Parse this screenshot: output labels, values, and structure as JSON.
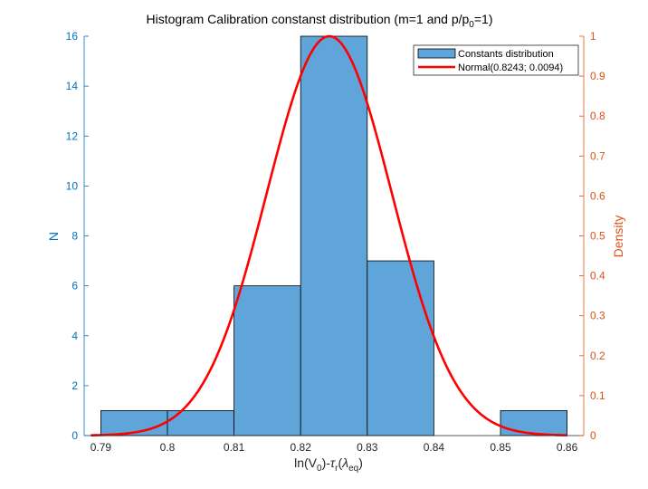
{
  "chart_data": {
    "type": "bar",
    "title": {
      "main": "Histogram Calibration constanst distribution (m=1 and p/p",
      "sub": "0",
      "tail": "=1)"
    },
    "xlabel": {
      "a": "ln(V",
      "a_sub": "0",
      "b": ")-",
      "tau": "τ",
      "tau_sub": "r",
      "c": "(",
      "lambda": "λ",
      "lambda_sub": "eq",
      "d": ")"
    },
    "ylabel_left": "N",
    "ylabel_right": "Density",
    "xlim": [
      0.7875,
      0.8625
    ],
    "ylim_left": [
      0,
      16
    ],
    "ylim_right": [
      0,
      1
    ],
    "x_ticks": [
      "0.79",
      "0.8",
      "0.81",
      "0.82",
      "0.83",
      "0.84",
      "0.85",
      "0.86"
    ],
    "y_ticks_left": [
      "0",
      "2",
      "4",
      "6",
      "8",
      "10",
      "12",
      "14",
      "16"
    ],
    "y_ticks_right": [
      "0",
      "0.1",
      "0.2",
      "0.3",
      "0.4",
      "0.5",
      "0.6",
      "0.7",
      "0.8",
      "0.9",
      "1"
    ],
    "bins": [
      {
        "from": 0.79,
        "to": 0.8,
        "count": 1
      },
      {
        "from": 0.8,
        "to": 0.81,
        "count": 1
      },
      {
        "from": 0.81,
        "to": 0.82,
        "count": 6
      },
      {
        "from": 0.82,
        "to": 0.83,
        "count": 16
      },
      {
        "from": 0.83,
        "to": 0.84,
        "count": 7
      },
      {
        "from": 0.84,
        "to": 0.85,
        "count": 0
      },
      {
        "from": 0.85,
        "to": 0.86,
        "count": 1
      }
    ],
    "normal_fit": {
      "mean": 0.8243,
      "sd": 0.0094,
      "x_from": 0.7885,
      "x_to": 0.86
    },
    "legend": {
      "placement": "top-right",
      "entries": [
        "Constants distribution",
        "Normal(0.8243; 0.0094)"
      ]
    },
    "colors": {
      "bar_fill": "#5fa5d9",
      "bar_edge": "#000000",
      "curve": "#ff0000",
      "left_axis": "#0072bd",
      "right_axis": "#d95319"
    }
  }
}
